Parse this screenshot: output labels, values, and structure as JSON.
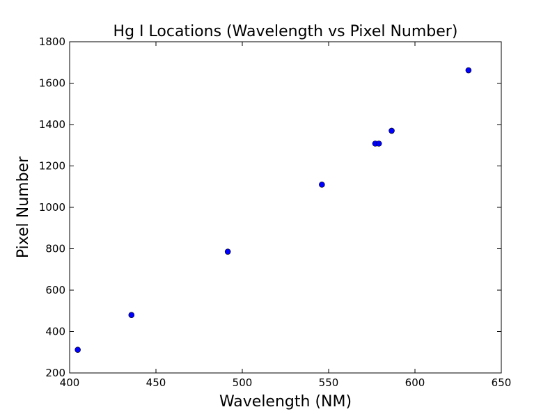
{
  "chart_data": {
    "type": "scatter",
    "title": "Hg I Locations (Wavelength vs Pixel Number)",
    "xlabel": "Wavelength (NM)",
    "ylabel": "Pixel Number",
    "xlim": [
      400,
      650
    ],
    "ylim": [
      200,
      1800
    ],
    "x_ticks": [
      400,
      450,
      500,
      550,
      600,
      650
    ],
    "y_ticks": [
      200,
      400,
      600,
      800,
      1000,
      1200,
      1400,
      1600,
      1800
    ],
    "grid": false,
    "legend": "none",
    "marker_color": "#0000ff",
    "marker_edge_color": "#000000",
    "points": [
      {
        "x": 404.7,
        "y": 312
      },
      {
        "x": 435.8,
        "y": 480
      },
      {
        "x": 491.6,
        "y": 786
      },
      {
        "x": 546.1,
        "y": 1110
      },
      {
        "x": 577.0,
        "y": 1308
      },
      {
        "x": 579.1,
        "y": 1308
      },
      {
        "x": 586.5,
        "y": 1370
      },
      {
        "x": 631.0,
        "y": 1662
      }
    ]
  }
}
